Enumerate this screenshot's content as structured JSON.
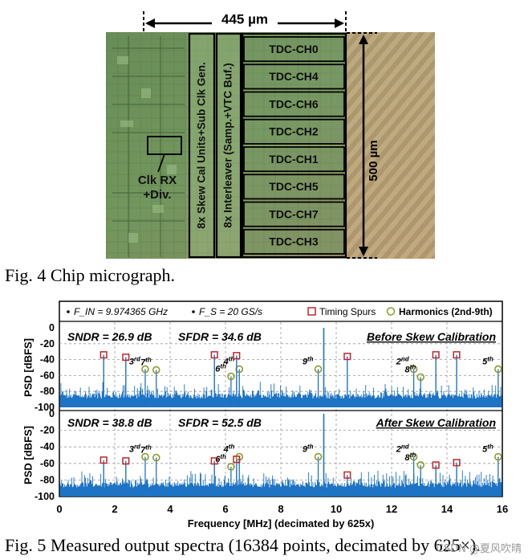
{
  "figure4": {
    "width_label": "445 µm",
    "height_label": "500 µm",
    "clk_block_label": [
      "Clk RX",
      "+Div."
    ],
    "skew_cal_label": "8x Skew Cal Units+Sub Clk Gen.",
    "interleaver_label": "8x Interleaver (Samp.+VTC Buf.)",
    "tdc_channels": [
      "TDC-CH0",
      "TDC-CH4",
      "TDC-CH6",
      "TDC-CH2",
      "TDC-CH1",
      "TDC-CH5",
      "TDC-CH7",
      "TDC-CH3"
    ],
    "caption": "Fig. 4 Chip micrograph."
  },
  "figure5": {
    "caption": "Fig. 5 Measured output spectra (16384 points, decimated by 625×).",
    "watermark": "CSDN @夏风吹晴",
    "chart_data": {
      "type": "line",
      "legend": {
        "fin": "F_IN = 9.974365 GHz",
        "fs": "F_S = 20 GS/s",
        "spurs": "Timing Spurs",
        "harmonics": "Harmonics (2nd-9th)"
      },
      "xlabel": "Frequency [MHz] (decimated by 625x)",
      "ylabel": "PSD [dBFS]",
      "xlim": [
        0,
        16
      ],
      "xticks": [
        "0",
        "2",
        "4",
        "6",
        "8",
        "10",
        "12",
        "14",
        "16"
      ],
      "ylim": [
        -100,
        0
      ],
      "yticks": [
        "0",
        "-20",
        "-40",
        "-60",
        "-80",
        "-100"
      ],
      "noise_floor": [
        -100,
        -80
      ],
      "colors": {
        "spectrum": "#1d73c4",
        "spur_marker": "#c0262c",
        "harmonic_marker": "#8a9a2c"
      },
      "panels": [
        {
          "title": "Before Skew Calibration",
          "sndr": "SNDR = 26.9 dB",
          "sfdr": "SFDR = 34.6 dB",
          "fundamental": {
            "x": 9.55,
            "y": 0
          },
          "timing_spurs": [
            {
              "x": 1.6,
              "y": -34
            },
            {
              "x": 2.4,
              "y": -37
            },
            {
              "x": 5.6,
              "y": -34
            },
            {
              "x": 6.4,
              "y": -35
            },
            {
              "x": 10.4,
              "y": -36
            },
            {
              "x": 13.6,
              "y": -34
            },
            {
              "x": 14.35,
              "y": -34
            }
          ],
          "harmonics": [
            {
              "label": "3rd",
              "x": 3.1,
              "y": -52
            },
            {
              "label": "7th",
              "x": 3.5,
              "y": -53
            },
            {
              "label": "6th",
              "x": 6.2,
              "y": -61
            },
            {
              "label": "4th",
              "x": 6.5,
              "y": -52
            },
            {
              "label": "9th",
              "x": 9.35,
              "y": -52
            },
            {
              "label": "2nd",
              "x": 12.8,
              "y": -52
            },
            {
              "label": "8th",
              "x": 13.05,
              "y": -62
            },
            {
              "label": "5th",
              "x": 15.85,
              "y": -52
            }
          ]
        },
        {
          "title": "After Skew Calibration",
          "sndr": "SNDR = 38.8 dB",
          "sfdr": "SFDR = 52.5 dB",
          "fundamental": {
            "x": 9.55,
            "y": 0
          },
          "timing_spurs": [
            {
              "x": 1.6,
              "y": -56
            },
            {
              "x": 2.4,
              "y": -57
            },
            {
              "x": 5.6,
              "y": -57
            },
            {
              "x": 6.4,
              "y": -55
            },
            {
              "x": 10.4,
              "y": -74
            },
            {
              "x": 13.6,
              "y": -62
            },
            {
              "x": 14.35,
              "y": -59
            }
          ],
          "harmonics": [
            {
              "label": "3rd",
              "x": 3.1,
              "y": -52
            },
            {
              "label": "7th",
              "x": 3.5,
              "y": -53
            },
            {
              "label": "6th",
              "x": 6.2,
              "y": -64
            },
            {
              "label": "4th",
              "x": 6.5,
              "y": -52
            },
            {
              "label": "9th",
              "x": 9.35,
              "y": -52
            },
            {
              "label": "2nd",
              "x": 12.8,
              "y": -52
            },
            {
              "label": "8th",
              "x": 13.05,
              "y": -62
            },
            {
              "label": "5th",
              "x": 15.85,
              "y": -52
            }
          ]
        }
      ]
    }
  }
}
